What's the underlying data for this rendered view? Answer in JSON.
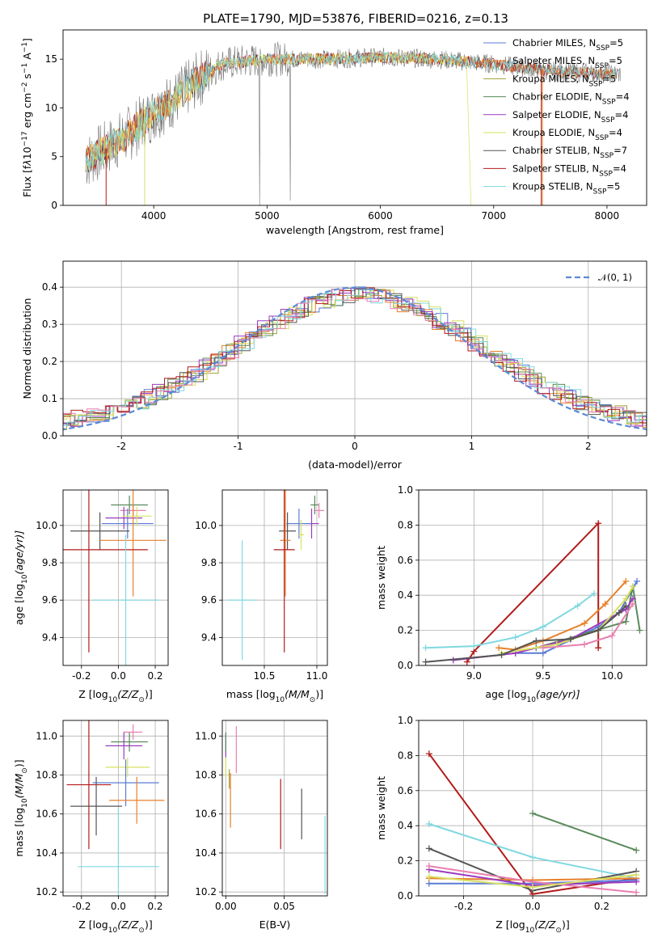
{
  "figure": {
    "title": "PLATE=1790, MJD=53876, FIBERID=0216, z=0.13"
  },
  "colors": {
    "Chabrier MILES": "#5b7bd6",
    "Salpeter MILES": "#e8802a",
    "Kroupa MILES": "#a0a032",
    "Chabrier ELODIE": "#5a8a5a",
    "Salpeter ELODIE": "#9a3bbf",
    "Kroupa ELODIE": "#d8e060",
    "Chabrier STELIB": "#555555",
    "Salpeter STELIB": "#b31b1b",
    "Kroupa STELIB": "#80d8e0",
    "pink": "#e87fb0"
  },
  "chart_data": [
    {
      "id": "spectrum",
      "type": "line",
      "xlabel": "wavelength [Angstrom, rest frame]",
      "ylabel_parts": [
        "Flux [f",
        "λ",
        "10",
        "−17",
        " erg cm",
        "−2",
        " s",
        "−1",
        " A",
        "−1",
        "]"
      ],
      "xlim": [
        3200,
        8350
      ],
      "ylim": [
        0,
        18
      ],
      "xticks": [
        4000,
        5000,
        6000,
        7000,
        8000
      ],
      "yticks": [
        0,
        5,
        10,
        15
      ],
      "legend_location": "upper-right",
      "legend": [
        {
          "name": "Chabrier MILES, N",
          "sub": "SSP",
          "suffix": "=5"
        },
        {
          "name": "Salpeter MILES, N",
          "sub": "SSP",
          "suffix": "=5"
        },
        {
          "name": "Kroupa MILES, N",
          "sub": "SSP",
          "suffix": "=5"
        },
        {
          "name": "Chabrier ELODIE, N",
          "sub": "SSP",
          "suffix": "=4"
        },
        {
          "name": "Salpeter ELODIE, N",
          "sub": "SSP",
          "suffix": "=4"
        },
        {
          "name": "Kroupa ELODIE, N",
          "sub": "SSP",
          "suffix": "=4"
        },
        {
          "name": "Chabrier STELIB, N",
          "sub": "SSP",
          "suffix": "=7"
        },
        {
          "name": "Salpeter STELIB, N",
          "sub": "SSP",
          "suffix": "=4"
        },
        {
          "name": "Kroupa STELIB, N",
          "sub": "SSP",
          "suffix": "=5"
        }
      ],
      "approx_envelope": {
        "x": [
          3400,
          3600,
          3800,
          4000,
          4200,
          4400,
          4600,
          5000,
          5500,
          6000,
          6500,
          7000,
          7500,
          8000,
          8100
        ],
        "y": [
          4.5,
          6.0,
          7.5,
          9.5,
          11.0,
          13.0,
          14.5,
          15.0,
          15.0,
          15.2,
          15.0,
          14.5,
          13.8,
          13.5,
          13.5
        ]
      }
    },
    {
      "id": "residuals",
      "type": "line",
      "xlabel": "(data-model)/error",
      "ylabel": "Normed distribution",
      "xlim": [
        -2.5,
        2.5
      ],
      "ylim": [
        0,
        0.47
      ],
      "xticks": [
        -2,
        -1,
        0,
        1,
        2
      ],
      "yticks": [
        0.0,
        0.1,
        0.2,
        0.3,
        0.4
      ],
      "legend": [
        "𝒩(0, 1)"
      ],
      "legend_location": "upper-right"
    },
    {
      "id": "age-vs-Z",
      "type": "scatter",
      "xlabel_parts": [
        "Z [log",
        "10",
        "(Z/Z",
        "⊙",
        ")]"
      ],
      "ylabel_parts": [
        "age  [log",
        "10",
        "(age/yr)]"
      ],
      "xlim": [
        -0.3,
        0.27
      ],
      "ylim": [
        9.25,
        10.19
      ],
      "xticks": [
        -0.2,
        0.0,
        0.2
      ],
      "yticks": [
        9.4,
        9.6,
        9.8,
        10.0
      ],
      "points": [
        {
          "label": "Chabrier ELODIE",
          "x": 0.06,
          "y": 10.11,
          "xerr": 0.1,
          "yerr": 0.05
        },
        {
          "label": "pink",
          "x": 0.08,
          "y": 10.08,
          "xerr": 0.07,
          "yerr": 0.04
        },
        {
          "label": "Salpeter ELODIE",
          "x": 0.03,
          "y": 10.04,
          "xerr": 0.1,
          "yerr": 0.06
        },
        {
          "label": "Chabrier MILES",
          "x": 0.05,
          "y": 10.01,
          "xerr": 0.14,
          "yerr": 0.08
        },
        {
          "label": "Chabrier STELIB",
          "x": -0.1,
          "y": 9.97,
          "xerr": 0.16,
          "yerr": 0.1
        },
        {
          "label": "Salpeter MILES",
          "x": 0.08,
          "y": 9.92,
          "xerr": 0.18,
          "yerr": 0.3
        },
        {
          "label": "Salpeter STELIB",
          "x": -0.16,
          "y": 9.87,
          "xerr": 0.32,
          "yerr": 0.55
        },
        {
          "label": "Kroupa STELIB",
          "x": 0.04,
          "y": 9.6,
          "xerr": 0.18,
          "yerr": 0.35
        },
        {
          "label": "Kroupa ELODIE",
          "x": 0.1,
          "y": 10.05,
          "xerr": 0.08,
          "yerr": 0.05
        }
      ]
    },
    {
      "id": "age-vs-mass",
      "type": "scatter",
      "xlabel_parts": [
        "mass [log",
        "10",
        "(M/M",
        "⊙",
        ")]"
      ],
      "xlim": [
        10.1,
        11.1
      ],
      "ylim": [
        9.25,
        10.19
      ],
      "xticks": [
        10.5,
        11.0
      ],
      "yticks": [
        9.4,
        9.6,
        9.8,
        10.0
      ],
      "points": [
        {
          "label": "Chabrier ELODIE",
          "x": 10.98,
          "y": 10.11,
          "xerr": 0.04,
          "yerr": 0.05
        },
        {
          "label": "pink",
          "x": 11.02,
          "y": 10.08,
          "xerr": 0.05,
          "yerr": 0.04
        },
        {
          "label": "Salpeter ELODIE",
          "x": 10.95,
          "y": 10.01,
          "xerr": 0.07,
          "yerr": 0.08
        },
        {
          "label": "Chabrier MILES",
          "x": 10.83,
          "y": 10.01,
          "xerr": 0.12,
          "yerr": 0.08
        },
        {
          "label": "Chabrier STELIB",
          "x": 10.72,
          "y": 9.97,
          "xerr": 0.08,
          "yerr": 0.1
        },
        {
          "label": "Salpeter MILES",
          "x": 10.7,
          "y": 9.92,
          "xerr": 0.05,
          "yerr": 0.3
        },
        {
          "label": "Salpeter STELIB",
          "x": 10.69,
          "y": 9.87,
          "xerr": 0.1,
          "yerr": 0.55
        },
        {
          "label": "Kroupa STELIB",
          "x": 10.29,
          "y": 9.6,
          "xerr": 0.14,
          "yerr": 0.32
        },
        {
          "label": "Kroupa ELODIE",
          "x": 10.85,
          "y": 9.95,
          "xerr": 0.03,
          "yerr": 0.08
        }
      ]
    },
    {
      "id": "weight-vs-age",
      "type": "line",
      "xlabel_parts": [
        "age  [log",
        "10",
        "(age/yr)]"
      ],
      "ylabel": "mass weight",
      "xlim": [
        8.6,
        10.25
      ],
      "ylim": [
        0,
        1
      ],
      "xticks": [
        9.0,
        9.5,
        10.0
      ],
      "yticks": [
        0.0,
        0.2,
        0.4,
        0.6,
        0.8,
        1.0
      ],
      "series": [
        {
          "label": "Salpeter STELIB",
          "x": [
            8.95,
            9.0,
            9.9,
            9.9
          ],
          "y": [
            0.02,
            0.08,
            0.81,
            0.1
          ]
        },
        {
          "label": "Kroupa STELIB",
          "x": [
            8.65,
            9.0,
            9.3,
            9.5,
            9.75,
            9.87
          ],
          "y": [
            0.1,
            0.11,
            0.16,
            0.22,
            0.34,
            0.41
          ]
        },
        {
          "label": "Salpeter MILES",
          "x": [
            9.18,
            9.3,
            9.5,
            9.8,
            9.95,
            10.1
          ],
          "y": [
            0.1,
            0.09,
            0.14,
            0.24,
            0.35,
            0.48
          ]
        },
        {
          "label": "Chabrier MILES",
          "x": [
            9.3,
            9.5,
            9.9,
            10.05,
            10.18
          ],
          "y": [
            0.07,
            0.07,
            0.22,
            0.3,
            0.48
          ]
        },
        {
          "label": "Chabrier ELODIE",
          "x": [
            9.45,
            10.1,
            10.15,
            10.2
          ],
          "y": [
            0.1,
            0.25,
            0.45,
            0.2
          ]
        },
        {
          "label": "Salpeter ELODIE",
          "x": [
            8.85,
            9.3,
            9.7,
            10.1,
            10.15
          ],
          "y": [
            0.03,
            0.07,
            0.15,
            0.32,
            0.38
          ]
        },
        {
          "label": "Kroupa ELODIE",
          "x": [
            9.2,
            9.6,
            9.9,
            10.1,
            10.15
          ],
          "y": [
            0.07,
            0.12,
            0.2,
            0.38,
            0.45
          ]
        },
        {
          "label": "Chabrier STELIB",
          "x": [
            8.65,
            9.2,
            9.45,
            9.7,
            9.9,
            10.05,
            10.1
          ],
          "y": [
            0.02,
            0.06,
            0.14,
            0.15,
            0.2,
            0.3,
            0.34
          ]
        },
        {
          "label": "pink",
          "x": [
            9.5,
            9.8,
            10.0,
            10.15
          ],
          "y": [
            0.1,
            0.12,
            0.17,
            0.35
          ]
        }
      ]
    },
    {
      "id": "mass-vs-Z",
      "type": "scatter",
      "xlabel_parts": [
        "Z [log",
        "10",
        "(Z/Z",
        "⊙",
        ")]"
      ],
      "ylabel_parts": [
        "mass [log",
        "10",
        "(M/M",
        "⊙",
        ")]"
      ],
      "xlim": [
        -0.3,
        0.27
      ],
      "ylim": [
        10.18,
        11.08
      ],
      "xticks": [
        -0.2,
        0.0,
        0.2
      ],
      "yticks": [
        10.2,
        10.4,
        10.6,
        10.8,
        11.0
      ],
      "points": [
        {
          "label": "Chabrier ELODIE",
          "x": 0.06,
          "y": 10.97,
          "xerr": 0.1,
          "yerr": 0.05
        },
        {
          "label": "pink",
          "x": 0.08,
          "y": 11.02,
          "xerr": 0.05,
          "yerr": 0.04
        },
        {
          "label": "Salpeter ELODIE",
          "x": 0.03,
          "y": 10.95,
          "xerr": 0.1,
          "yerr": 0.07
        },
        {
          "label": "Kroupa ELODIE",
          "x": 0.05,
          "y": 10.84,
          "xerr": 0.12,
          "yerr": 0.05
        },
        {
          "label": "Chabrier MILES",
          "x": 0.04,
          "y": 10.76,
          "xerr": 0.18,
          "yerr": 0.12
        },
        {
          "label": "Salpeter STELIB",
          "x": -0.16,
          "y": 10.75,
          "xerr": 0.12,
          "yerr": 0.33
        },
        {
          "label": "Salpeter MILES",
          "x": 0.1,
          "y": 10.67,
          "xerr": 0.15,
          "yerr": 0.12
        },
        {
          "label": "Chabrier STELIB",
          "x": -0.12,
          "y": 10.64,
          "xerr": 0.14,
          "yerr": 0.15
        },
        {
          "label": "Kroupa STELIB",
          "x": 0.0,
          "y": 10.33,
          "xerr": 0.22,
          "yerr": 0.3
        }
      ]
    },
    {
      "id": "mass-vs-EBV",
      "type": "scatter",
      "xlabel": "E(B-V)",
      "xlim": [
        -0.003,
        0.087
      ],
      "ylim": [
        10.18,
        11.08
      ],
      "xticks": [
        0.0,
        0.05
      ],
      "yticks": [
        10.2,
        10.4,
        10.6,
        10.8,
        11.0
      ],
      "points": [
        {
          "label": "Salpeter ELODIE",
          "x": 0.0,
          "y": 10.95,
          "xerr": 0,
          "yerr": 0.06
        },
        {
          "label": "Kroupa ELODIE",
          "x": 0.0,
          "y": 10.84,
          "xerr": 0,
          "yerr": 0.05
        },
        {
          "label": "Chabrier ELODIE",
          "x": 0.0,
          "y": 10.97,
          "xerr": 0,
          "yerr": 0.05
        },
        {
          "label": "Kroupa MILES",
          "x": 0.003,
          "y": 10.78,
          "xerr": 0,
          "yerr": 0.05
        },
        {
          "label": "Salpeter MILES",
          "x": 0.004,
          "y": 10.67,
          "xerr": 0,
          "yerr": 0.14
        },
        {
          "label": "pink",
          "x": 0.009,
          "y": 10.93,
          "xerr": 0,
          "yerr": 0.12
        },
        {
          "label": "Salpeter STELIB",
          "x": 0.047,
          "y": 10.6,
          "xerr": 0,
          "yerr": 0.18
        },
        {
          "label": "Chabrier STELIB",
          "x": 0.065,
          "y": 10.6,
          "xerr": 0,
          "yerr": 0.13
        },
        {
          "label": "Kroupa STELIB",
          "x": 0.085,
          "y": 10.39,
          "xerr": 0,
          "yerr": 0.2
        }
      ]
    },
    {
      "id": "weight-vs-Z",
      "type": "line",
      "xlabel_parts": [
        "Z [log",
        "10",
        "(Z/Z",
        "⊙",
        ")]"
      ],
      "ylabel": "mass weight",
      "xlim": [
        -0.33,
        0.33
      ],
      "ylim": [
        0,
        1
      ],
      "xticks": [
        -0.2,
        0.0,
        0.2
      ],
      "yticks": [
        0.0,
        0.2,
        0.4,
        0.6,
        0.8,
        1.0
      ],
      "series": [
        {
          "label": "Salpeter STELIB",
          "x": [
            -0.3,
            0.0,
            0.3
          ],
          "y": [
            0.81,
            0.01,
            0.1
          ]
        },
        {
          "label": "Kroupa STELIB",
          "x": [
            -0.3,
            0.0,
            0.3
          ],
          "y": [
            0.41,
            0.22,
            0.1
          ]
        },
        {
          "label": "Chabrier ELODIE",
          "x": [
            0.0,
            0.3
          ],
          "y": [
            0.47,
            0.26
          ]
        },
        {
          "label": "Chabrier STELIB",
          "x": [
            -0.3,
            0.0,
            0.3
          ],
          "y": [
            0.27,
            0.03,
            0.14
          ]
        },
        {
          "label": "Chabrier MILES",
          "x": [
            -0.3,
            0.0,
            0.3
          ],
          "y": [
            0.07,
            0.07,
            0.09
          ]
        },
        {
          "label": "Salpeter MILES",
          "x": [
            -0.3,
            0.0,
            0.3
          ],
          "y": [
            0.1,
            0.09,
            0.1
          ]
        },
        {
          "label": "Salpeter ELODIE",
          "x": [
            -0.3,
            0.0,
            0.3
          ],
          "y": [
            0.15,
            0.06,
            0.08
          ]
        },
        {
          "label": "pink",
          "x": [
            -0.3,
            0.0,
            0.3
          ],
          "y": [
            0.17,
            0.08,
            0.02
          ]
        },
        {
          "label": "Kroupa ELODIE",
          "x": [
            -0.3,
            0.0,
            0.3
          ],
          "y": [
            0.11,
            0.05,
            0.12
          ]
        }
      ]
    }
  ]
}
